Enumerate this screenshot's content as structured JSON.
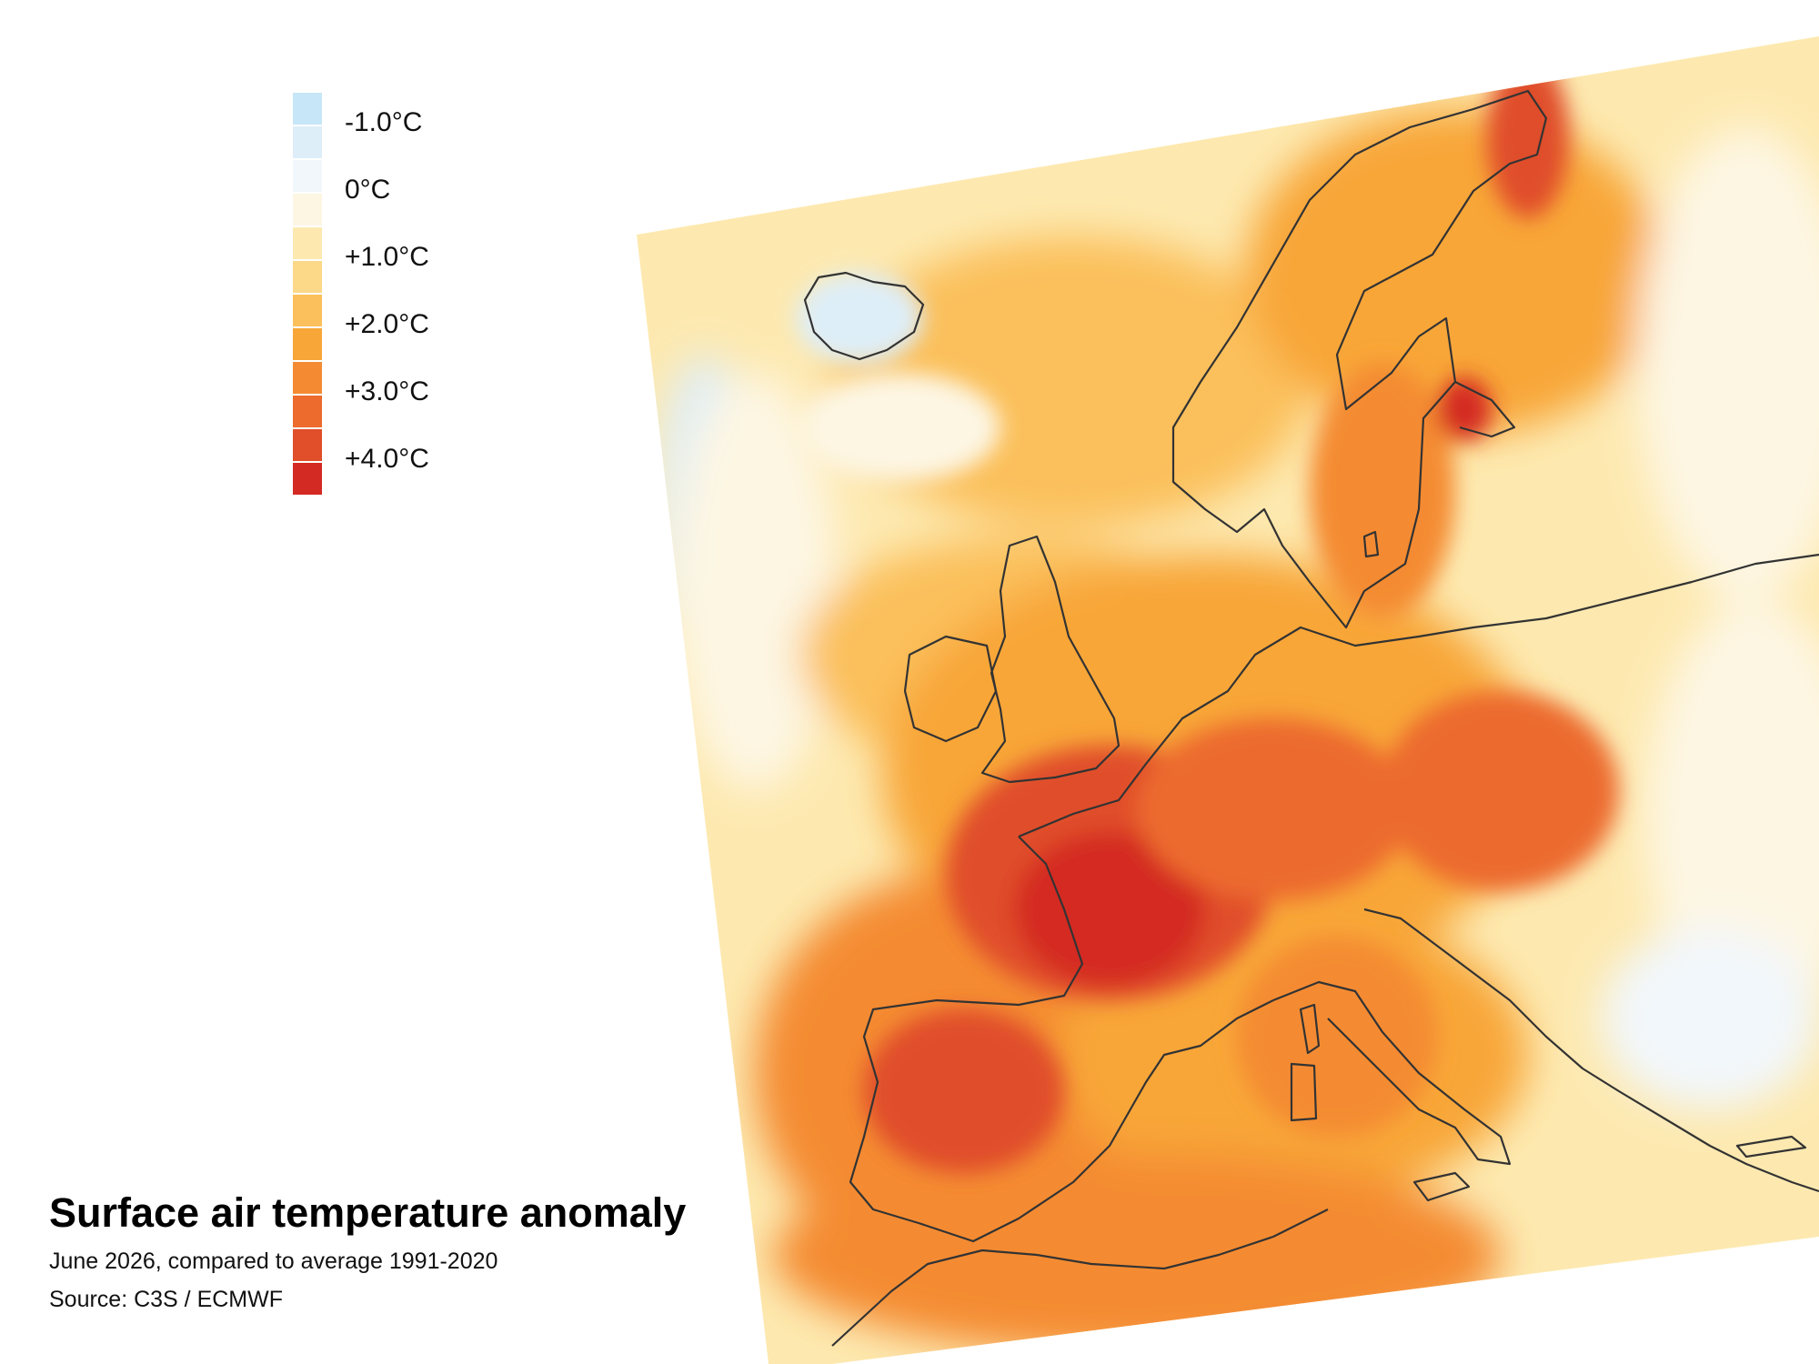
{
  "title": "Surface air temperature anomaly",
  "subtitle": "June 2026, compared to average 1991-2020",
  "source": "Source: C3S / ECMWF",
  "legend": {
    "swatches": [
      {
        "color": "#c7e6f7",
        "value": -1.25
      },
      {
        "color": "#deeef8",
        "value": -0.75
      },
      {
        "color": "#f2f7fb",
        "value": -0.25
      },
      {
        "color": "#fdf6e3",
        "value": 0.25
      },
      {
        "color": "#fde9b0",
        "value": 0.75
      },
      {
        "color": "#fcd889",
        "value": 1.25
      },
      {
        "color": "#fbc05b",
        "value": 1.75
      },
      {
        "color": "#f8a637",
        "value": 2.25
      },
      {
        "color": "#f48b33",
        "value": 2.75
      },
      {
        "color": "#ec6b2d",
        "value": 3.25
      },
      {
        "color": "#e04e2a",
        "value": 3.75
      },
      {
        "color": "#d42a24",
        "value": 4.25
      }
    ],
    "labels": [
      "-1.0°C",
      "0°C",
      "+1.0°C",
      "+2.0°C",
      "+3.0°C",
      "+4.0°C"
    ]
  },
  "colors": {
    "coastline": "#333333",
    "background": "#ffffff",
    "map_default": "#fde9b0"
  }
}
